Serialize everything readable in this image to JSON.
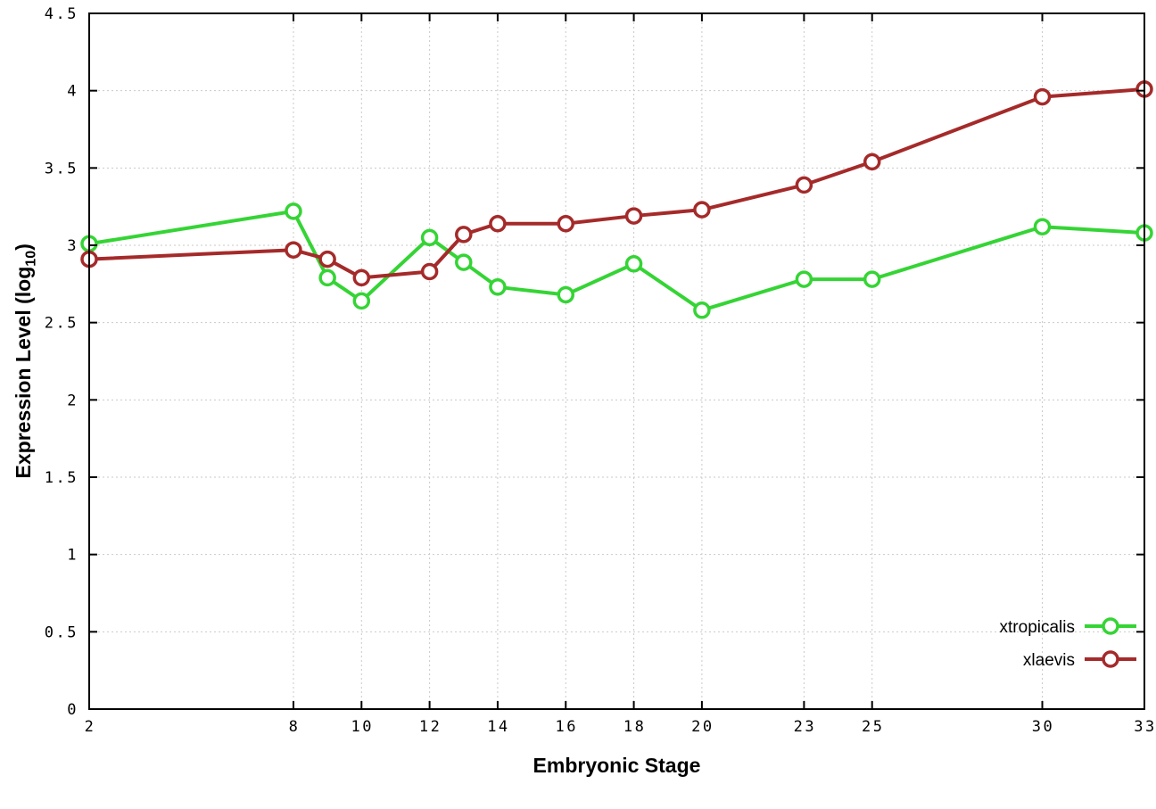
{
  "chart_data": {
    "type": "line",
    "title": "",
    "xlabel": "Embryonic Stage",
    "ylabel": "Expression Level (log10)",
    "ylabel_main": "Expression Level (log",
    "ylabel_sub": "10",
    "ylabel_close": ")",
    "xlim": [
      2,
      33
    ],
    "ylim": [
      0,
      4.5
    ],
    "grid": true,
    "x": [
      2,
      8,
      9,
      10,
      12,
      13,
      14,
      16,
      18,
      20,
      23,
      25,
      30,
      33
    ],
    "x_ticks": [
      2,
      8,
      10,
      12,
      14,
      16,
      18,
      20,
      23,
      25,
      30,
      33
    ],
    "x_tick_labels": [
      "2",
      "8",
      "10",
      "12",
      "14",
      "16",
      "18",
      "20",
      "23",
      "25",
      "30",
      "33"
    ],
    "y_ticks": [
      0,
      0.5,
      1,
      1.5,
      2,
      2.5,
      3,
      3.5,
      4,
      4.5
    ],
    "y_tick_labels": [
      "0",
      "0.5",
      "1",
      "1.5",
      "2",
      "2.5",
      "3",
      "3.5",
      "4",
      "4.5"
    ],
    "series": [
      {
        "name": "xtropicalis",
        "color": "#35d435",
        "values": [
          3.01,
          3.22,
          2.79,
          2.64,
          3.05,
          2.89,
          2.73,
          2.68,
          2.88,
          2.58,
          2.78,
          2.78,
          3.12,
          3.08
        ]
      },
      {
        "name": "xlaevis",
        "color": "#a52a2a",
        "values": [
          2.91,
          2.97,
          2.91,
          2.79,
          2.83,
          3.07,
          3.14,
          3.14,
          3.19,
          3.23,
          3.39,
          3.54,
          3.96,
          4.01
        ]
      }
    ],
    "legend": {
      "position": "bottom-right",
      "entries": [
        "xtropicalis",
        "xlaevis"
      ]
    }
  }
}
